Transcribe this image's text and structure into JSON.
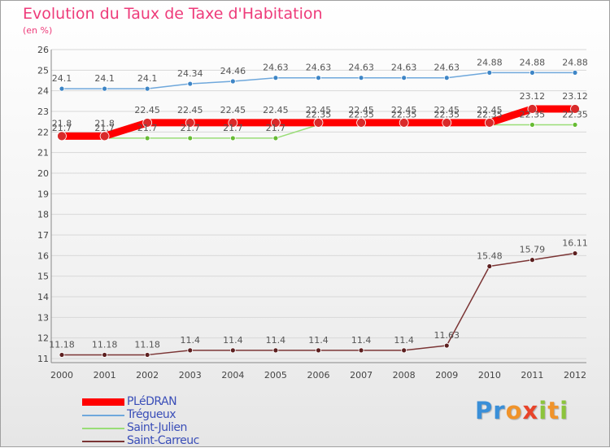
{
  "title": "Evolution du Taux de Taxe d'Habitation",
  "unit": "(en %)",
  "logo": {
    "letters": [
      "P",
      "r",
      "o",
      "x",
      "i",
      "t",
      "i"
    ],
    "colors": [
      "#3a8fd8",
      "#3a8fd8",
      "#f0932a",
      "#e8442a",
      "#8cc43c",
      "#f0932a",
      "#8cc43c"
    ]
  },
  "chart_data": {
    "type": "line",
    "x": [
      "2000",
      "2001",
      "2002",
      "2003",
      "2004",
      "2005",
      "2006",
      "2007",
      "2008",
      "2009",
      "2010",
      "2011",
      "2012"
    ],
    "ylim": [
      11,
      26
    ],
    "yticks": [
      11,
      12,
      13,
      14,
      15,
      16,
      17,
      18,
      19,
      20,
      21,
      22,
      23,
      24,
      25,
      26
    ],
    "grid": "horizontal",
    "legend_position": "bottom-left",
    "series": [
      {
        "name": "PLéDRAN",
        "color": "#ff0000",
        "width": 9,
        "marker": "#d92a2a",
        "values": [
          21.8,
          21.8,
          22.45,
          22.45,
          22.45,
          22.45,
          22.45,
          22.45,
          22.45,
          22.45,
          22.45,
          23.12,
          23.12
        ],
        "labels": [
          "21.8",
          "21.8",
          "22.45",
          "22.45",
          "22.45",
          "22.45",
          "22.45",
          "22.45",
          "22.45",
          "22.45",
          "22.45",
          "23.12",
          "23.12"
        ]
      },
      {
        "name": "Trégueux",
        "color": "#6fa8dc",
        "width": 1.5,
        "marker": "#3d85c6",
        "values": [
          24.1,
          24.1,
          24.1,
          24.34,
          24.46,
          24.63,
          24.63,
          24.63,
          24.63,
          24.63,
          24.88,
          24.88,
          24.88
        ],
        "labels": [
          "24.1",
          "24.1",
          "24.1",
          "24.34",
          "24.46",
          "24.63",
          "24.63",
          "24.63",
          "24.63",
          "24.63",
          "24.88",
          "24.88",
          "24.88"
        ]
      },
      {
        "name": "Saint-Julien",
        "color": "#99dd77",
        "width": 1.5,
        "marker": "#66bb33",
        "values": [
          21.7,
          21.7,
          21.7,
          21.7,
          21.7,
          21.7,
          22.35,
          22.35,
          22.35,
          22.35,
          22.35,
          22.35,
          22.35
        ],
        "labels": [
          "21.7",
          "21.7",
          "21.7",
          "21.7",
          "21.7",
          "21.7",
          "22.35",
          "22.35",
          "22.35",
          "22.35",
          "22.35",
          "22.35",
          "22.35"
        ]
      },
      {
        "name": "Saint-Carreuc",
        "color": "#7b3535",
        "width": 1.5,
        "marker": "#5c1f1f",
        "values": [
          11.18,
          11.18,
          11.18,
          11.4,
          11.4,
          11.4,
          11.4,
          11.4,
          11.4,
          11.63,
          15.48,
          15.79,
          16.11
        ],
        "labels": [
          "11.18",
          "11.18",
          "11.18",
          "11.4",
          "11.4",
          "11.4",
          "11.4",
          "11.4",
          "11.4",
          "11.63",
          "15.48",
          "15.79",
          "16.11"
        ]
      }
    ]
  }
}
